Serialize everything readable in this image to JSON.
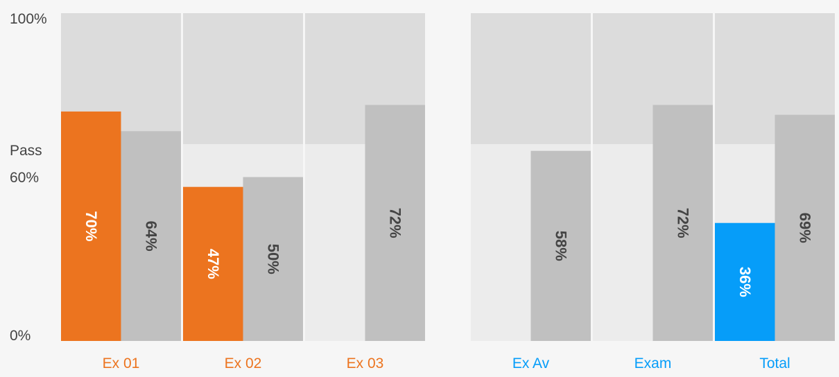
{
  "chart_data": {
    "type": "bar",
    "y_axis": {
      "labels": {
        "top": "100%",
        "pass_word": "Pass",
        "pass_value": "60%",
        "bottom": "0%"
      },
      "ylim": [
        0,
        100
      ],
      "pass_mark": 60
    },
    "colors": {
      "exercise": "#ec741f",
      "summary": "#069df9",
      "comparison": "#c0c0c0",
      "track_upper": "#dcdcdc",
      "track_lower": "#ececec",
      "background": "#f6f6f6",
      "value_text_on_color": "#ffffff",
      "value_text_on_grey": "#444444"
    },
    "groups": [
      {
        "name": "exercises",
        "categories": [
          {
            "label": "Ex 01",
            "primary": 70,
            "primary_label": "70%",
            "secondary": 64,
            "secondary_label": "64%"
          },
          {
            "label": "Ex 02",
            "primary": 47,
            "primary_label": "47%",
            "secondary": 50,
            "secondary_label": "50%"
          },
          {
            "label": "Ex 03",
            "primary": null,
            "primary_label": "",
            "secondary": 72,
            "secondary_label": "72%"
          }
        ]
      },
      {
        "name": "summary",
        "categories": [
          {
            "label": "Ex Av",
            "primary": null,
            "primary_label": "",
            "secondary": 58,
            "secondary_label": "58%"
          },
          {
            "label": "Exam",
            "primary": null,
            "primary_label": "",
            "secondary": 72,
            "secondary_label": "72%"
          },
          {
            "label": "Total",
            "primary": 36,
            "primary_label": "36%",
            "secondary": 69,
            "secondary_label": "69%"
          }
        ]
      }
    ]
  }
}
